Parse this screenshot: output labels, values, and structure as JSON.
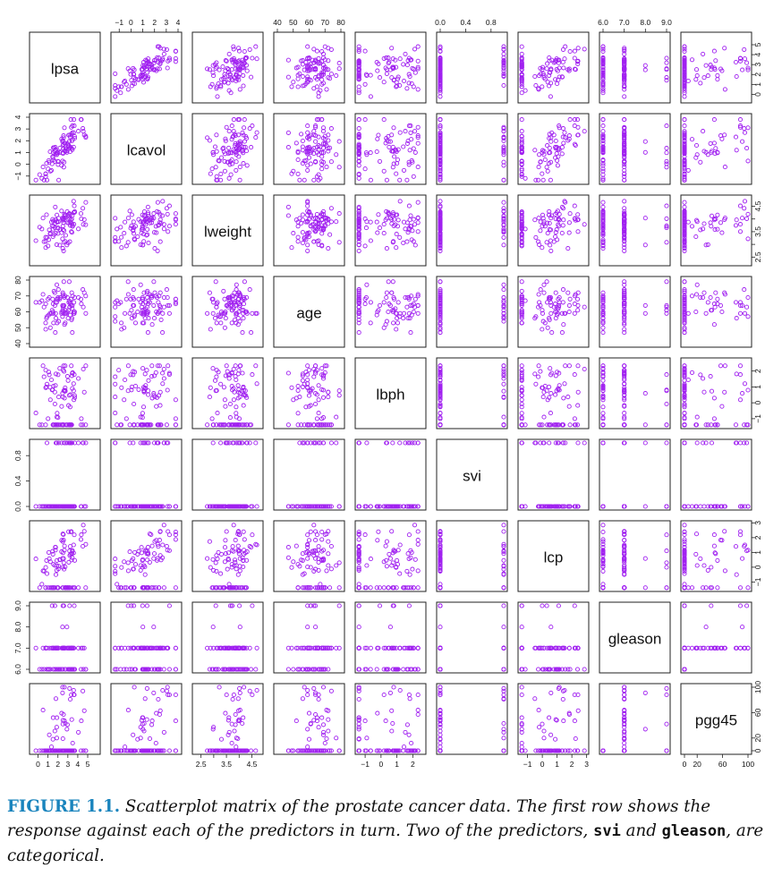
{
  "chart_data": {
    "type": "scatter_matrix",
    "variables": [
      {
        "name": "lpsa",
        "label": "lpsa",
        "ticks": [
          0,
          1,
          2,
          3,
          4,
          5
        ],
        "ticklabels": [
          "0",
          "1",
          "2",
          "3",
          "4",
          "5"
        ],
        "lim": [
          -0.5,
          5.9
        ]
      },
      {
        "name": "lcavol",
        "label": "lcavol",
        "ticks": [
          -1,
          0,
          1,
          2,
          3,
          4
        ],
        "ticklabels": [
          "−1",
          "0",
          "1",
          "2",
          "3",
          "4"
        ],
        "lim": [
          -1.4,
          4.0
        ]
      },
      {
        "name": "lweight",
        "label": "lweight",
        "ticks": [
          2.5,
          3.0,
          3.5,
          4.0,
          4.5
        ],
        "ticklabels": [
          "2.5",
          "3.5",
          "4.5"
        ],
        "ticklabel_values": [
          2.5,
          3.5,
          4.5
        ],
        "lim": [
          2.3,
          4.8
        ]
      },
      {
        "name": "age",
        "label": "age",
        "ticks": [
          40,
          50,
          60,
          70,
          80
        ],
        "ticklabels": [
          "40",
          "50",
          "60",
          "70",
          "80"
        ],
        "lim": [
          40,
          80
        ]
      },
      {
        "name": "lbph",
        "label": "lbph",
        "ticks": [
          -1,
          0,
          1,
          2
        ],
        "ticklabels": [
          "−1",
          "0",
          "1",
          "2"
        ],
        "lim": [
          -1.4,
          2.6
        ]
      },
      {
        "name": "svi",
        "label": "svi",
        "ticks": [
          0.0,
          0.4,
          0.8
        ],
        "ticklabels": [
          "0.0",
          "0.4",
          "0.8"
        ],
        "lim": [
          0,
          1
        ]
      },
      {
        "name": "lcp",
        "label": "lcp",
        "ticks": [
          -1,
          0,
          1,
          2,
          3
        ],
        "ticklabels": [
          "−1",
          "0",
          "1",
          "2",
          "3"
        ],
        "lim": [
          -1.4,
          2.9
        ]
      },
      {
        "name": "gleason",
        "label": "gleason",
        "ticks": [
          6.0,
          7.0,
          8.0,
          9.0
        ],
        "ticklabels": [
          "6.0",
          "7.0",
          "8.0",
          "9.0"
        ],
        "lim": [
          6,
          9
        ]
      },
      {
        "name": "pgg45",
        "label": "pgg45",
        "ticks": [
          0,
          20,
          60,
          100
        ],
        "ticklabels": [
          "0",
          "20",
          "60",
          "100"
        ],
        "lim": [
          0,
          100
        ]
      }
    ],
    "marker": {
      "shape": "open-circle",
      "color": "#a020f0"
    },
    "layout": "9x9 grid, variable names on diagonal, axes alternate top/bottom and left/right"
  },
  "caption": {
    "figure_label": "FIGURE 1.1.",
    "text_1": "Scatterplot matrix of the prostate cancer data. The first row shows the response against each of the predictors in turn. Two of the predictors,",
    "code_1": "svi",
    "text_2": "and",
    "code_2": "gleason",
    "text_3": ", are categorical."
  }
}
